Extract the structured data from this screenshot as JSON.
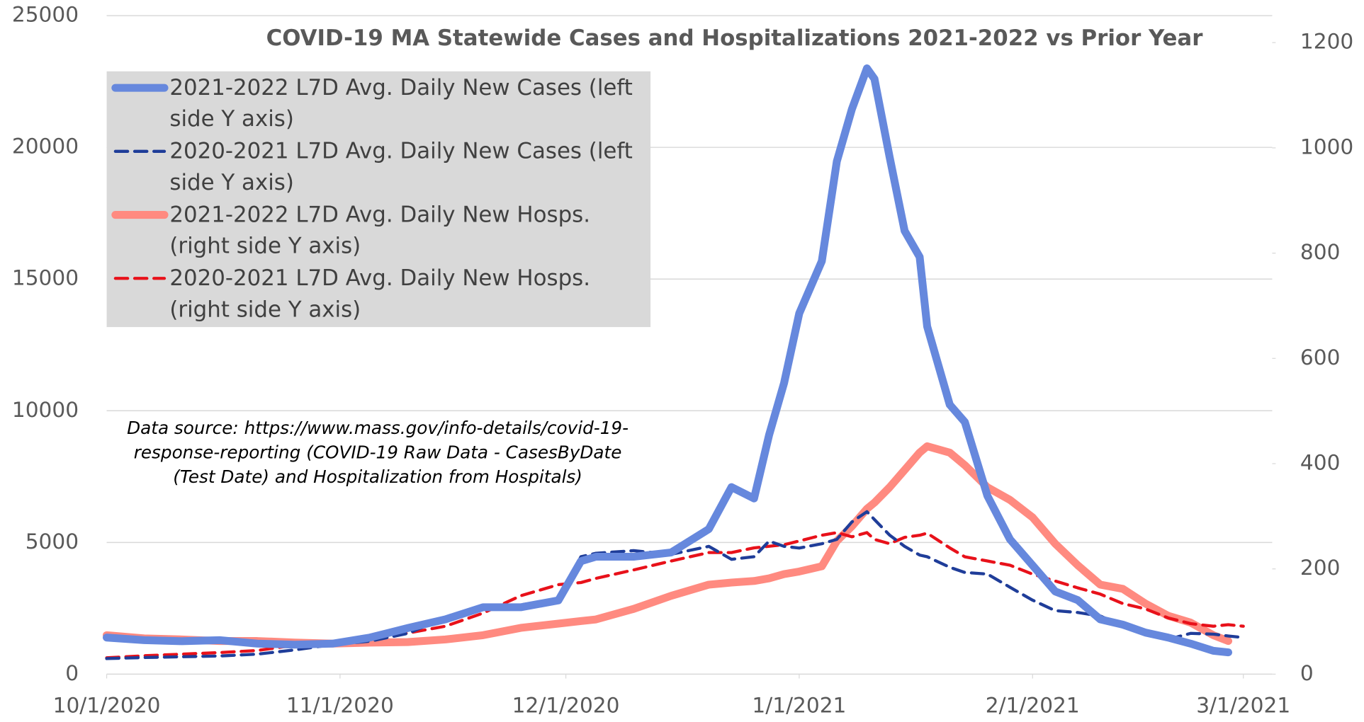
{
  "chart_data": {
    "type": "line",
    "title": "COVID-19 MA Statewide Cases and Hospitalizations 2021-2022 vs Prior Year",
    "annotation": "Data source: https://www.mass.gov/info-details/covid-19-response-reporting (COVID-19 Raw Data - CasesByDate (Test Date) and Hospitalization from Hospitals)",
    "x": [
      "10/1/2020",
      "10/6/2020",
      "10/11/2020",
      "10/16/2020",
      "10/21/2020",
      "10/26/2020",
      "10/31/2020",
      "11/5/2020",
      "11/10/2020",
      "11/15/2020",
      "11/20/2020",
      "11/25/2020",
      "11/30/2020",
      "12/3/2020",
      "12/5/2020",
      "12/10/2020",
      "12/15/2020",
      "12/20/2020",
      "12/23/2020",
      "12/26/2020",
      "12/28/2020",
      "12/30/2020",
      "1/1/2021",
      "1/4/2021",
      "1/6/2021",
      "1/8/2021",
      "1/10/2021",
      "1/11/2021",
      "1/13/2021",
      "1/15/2021",
      "1/17/2021",
      "1/18/2021",
      "1/21/2021",
      "1/23/2021",
      "1/26/2021",
      "1/29/2021",
      "2/1/2021",
      "2/4/2021",
      "2/7/2021",
      "2/10/2021",
      "2/13/2021",
      "2/16/2021",
      "2/19/2021",
      "2/22/2021",
      "2/25/2021",
      "2/27/2021",
      "3/1/2021"
    ],
    "xlim": [
      "10/1/2020",
      "3/1/2021"
    ],
    "xticks": [
      "10/1/2020",
      "11/1/2020",
      "12/1/2020",
      "1/1/2021",
      "2/1/2021",
      "3/1/2021"
    ],
    "ylim": [
      0,
      25000
    ],
    "yticks": [
      0,
      5000,
      10000,
      15000,
      20000,
      25000
    ],
    "y2lim": [
      0,
      1200
    ],
    "y2ticks": [
      0,
      200,
      400,
      600,
      800,
      1000,
      1200
    ],
    "grid": true,
    "legend": "upper left",
    "series": [
      {
        "name": "2021-2022 L7D Avg. Daily New Cases (left side Y axis)",
        "color": "#6688dd",
        "style": "solid",
        "axis": "y",
        "values": [
          1390,
          1290,
          1250,
          1290,
          1160,
          1120,
          1160,
          1390,
          1750,
          2080,
          2540,
          2540,
          2800,
          4290,
          4460,
          4460,
          4620,
          5510,
          7100,
          6670,
          9080,
          11060,
          13700,
          15680,
          19470,
          21450,
          23000,
          22600,
          19640,
          16830,
          15840,
          13200,
          10230,
          9570,
          6770,
          5120,
          4130,
          3140,
          2810,
          2080,
          1880,
          1580,
          1390,
          1160,
          890,
          830,
          null
        ]
      },
      {
        "name": "2020-2021 L7D Avg. Daily New Cases (left side Y axis)",
        "color": "#1f3d99",
        "style": "dashed",
        "axis": "y",
        "values": [
          590,
          630,
          660,
          690,
          760,
          920,
          1120,
          1250,
          1550,
          2150,
          2480,
          2640,
          2800,
          4460,
          4590,
          4690,
          4550,
          4850,
          4360,
          4460,
          5050,
          4850,
          4790,
          4950,
          5120,
          5780,
          6170,
          5870,
          5280,
          4850,
          4520,
          4460,
          4060,
          3860,
          3800,
          3300,
          2810,
          2410,
          2340,
          2210,
          1820,
          1490,
          1320,
          1550,
          1520,
          1450,
          1390
        ]
      },
      {
        "name": "2021-2022 L7D Avg. Daily New Hosps. (right side Y axis)",
        "color": "#ff8a80",
        "style": "solid",
        "axis": "y2",
        "values": [
          74,
          68,
          66,
          63,
          63,
          60,
          58,
          60,
          61,
          66,
          74,
          88,
          96,
          101,
          104,
          124,
          149,
          170,
          174,
          177,
          182,
          190,
          195,
          205,
          253,
          281,
          314,
          326,
          355,
          388,
          421,
          433,
          421,
          397,
          355,
          331,
          298,
          248,
          207,
          170,
          162,
          134,
          111,
          98,
          74,
          63,
          null
        ]
      },
      {
        "name": "2020-2021 L7D Avg. Daily New Hosps. (right side Y axis)",
        "color": "#e8111a",
        "style": "dashed",
        "axis": "y2",
        "values": [
          31,
          35,
          38,
          41,
          45,
          55,
          60,
          66,
          78,
          91,
          116,
          149,
          170,
          174,
          182,
          198,
          215,
          231,
          231,
          240,
          243,
          246,
          253,
          264,
          269,
          261,
          269,
          256,
          248,
          260,
          264,
          268,
          240,
          223,
          215,
          207,
          190,
          177,
          164,
          152,
          134,
          124,
          107,
          96,
          91,
          94,
          91
        ]
      }
    ]
  }
}
